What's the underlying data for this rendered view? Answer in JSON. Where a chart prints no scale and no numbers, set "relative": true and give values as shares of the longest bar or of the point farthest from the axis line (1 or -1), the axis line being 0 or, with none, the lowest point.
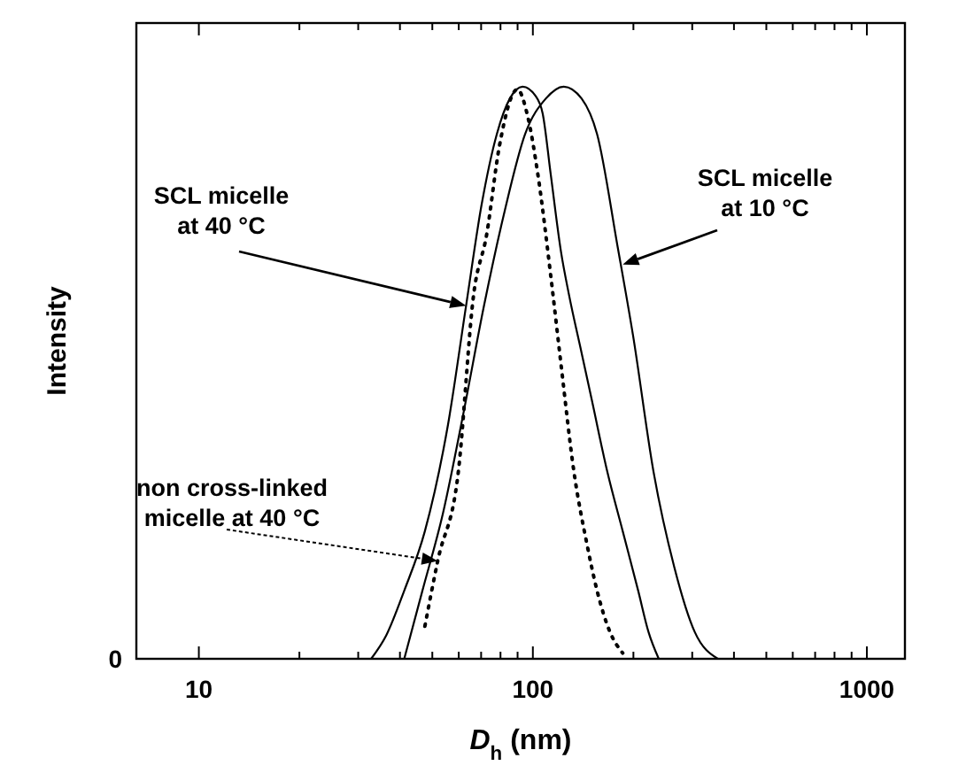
{
  "chart_data": {
    "type": "line",
    "relative": true,
    "log": "x",
    "xlabel": "D$_{h}$ (nm)",
    "ylabel": "Intensity",
    "xlim": [
      6.5,
      1300
    ],
    "xticks": [
      10,
      {
        "value": 20,
        "label": null
      },
      {
        "value": 30,
        "label": null
      },
      {
        "value": 40,
        "label": null
      },
      {
        "value": 50,
        "label": null
      },
      {
        "value": 60,
        "label": null
      },
      {
        "value": 70,
        "label": null
      },
      {
        "value": 80,
        "label": null
      },
      {
        "value": 90,
        "label": null
      },
      100,
      {
        "value": 200,
        "label": null
      },
      {
        "value": 300,
        "label": null
      },
      {
        "value": 400,
        "label": null
      },
      {
        "value": 500,
        "label": null
      },
      {
        "value": 600,
        "label": null
      },
      {
        "value": 700,
        "label": null
      },
      {
        "value": 800,
        "label": null
      },
      {
        "value": 900,
        "label": null
      },
      1000
    ],
    "grid": false,
    "series": [
      {
        "color": "#000000",
        "line_style": "solid",
        "x": [
          32.8,
          36.4,
          41.2,
          47.5,
          55.7,
          63.1,
          70.2,
          78,
          85.3,
          93.2,
          101.8,
          107,
          113.2,
          121.5,
          128.2,
          140,
          150.3,
          167.2,
          185.8,
          206.7,
          221.9,
          238.2
        ],
        "values": [
          0,
          0.041,
          0.119,
          0.223,
          0.409,
          0.617,
          0.793,
          0.917,
          0.979,
          1,
          0.984,
          0.953,
          0.845,
          0.71,
          0.637,
          0.534,
          0.451,
          0.326,
          0.223,
          0.119,
          0.047,
          0
        ]
      },
      {
        "color": "#000000",
        "line_style": "solid",
        "x": [
          41.2,
          46.7,
          53.8,
          62.0,
          71.4,
          82.3,
          94.8,
          109.3,
          123.7,
          140,
          155.7,
          179.4,
          199.5,
          229.9,
          264.9,
          305.2,
          357.9
        ],
        "values": [
          0,
          0.119,
          0.254,
          0.43,
          0.617,
          0.782,
          0.917,
          0.979,
          1,
          0.979,
          0.917,
          0.72,
          0.565,
          0.326,
          0.161,
          0.047,
          0
        ]
      },
      {
        "color": "#000000",
        "line_style": "dotted",
        "x": [
          47.5,
          51.9,
          59.8,
          66.5,
          72.7,
          79.4,
          89.9,
          96.5,
          103.6,
          113.2,
          121.5,
          132.8,
          145,
          155.7,
          170.1,
          185.8
        ],
        "values": [
          0.057,
          0.171,
          0.326,
          0.637,
          0.741,
          0.896,
          0.995,
          0.948,
          0.845,
          0.668,
          0.513,
          0.326,
          0.202,
          0.119,
          0.047,
          0.01
        ]
      }
    ],
    "annotations": [
      {
        "text": "SCL micelle\nat 40 °C",
        "x": 63.1,
        "y": 0.617
      },
      {
        "text": "SCL micelle\nat 10 °C",
        "x": 185.8,
        "y": 0.689
      },
      {
        "text": "non cross-linked\nmicelle at 40 °C",
        "x": 51.9,
        "y": 0.171
      },
      "0"
    ]
  }
}
